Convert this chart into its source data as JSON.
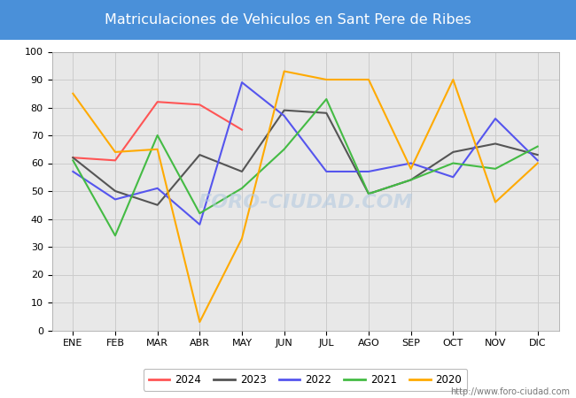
{
  "title": "Matriculaciones de Vehiculos en Sant Pere de Ribes",
  "title_bg_color": "#4a90d9",
  "title_text_color": "#ffffff",
  "months": [
    "ENE",
    "FEB",
    "MAR",
    "ABR",
    "MAY",
    "JUN",
    "JUL",
    "AGO",
    "SEP",
    "OCT",
    "NOV",
    "DIC"
  ],
  "series": {
    "2024": {
      "color": "#ff5555",
      "data": [
        62,
        61,
        82,
        81,
        72,
        null,
        null,
        null,
        null,
        null,
        null,
        null
      ]
    },
    "2023": {
      "color": "#555555",
      "data": [
        62,
        50,
        45,
        63,
        57,
        79,
        78,
        49,
        54,
        64,
        67,
        63
      ]
    },
    "2022": {
      "color": "#5555ee",
      "data": [
        57,
        47,
        51,
        38,
        89,
        77,
        57,
        57,
        60,
        55,
        76,
        61
      ]
    },
    "2021": {
      "color": "#44bb44",
      "data": [
        61,
        34,
        70,
        42,
        51,
        65,
        83,
        49,
        54,
        60,
        58,
        66
      ]
    },
    "2020": {
      "color": "#ffaa00",
      "data": [
        85,
        64,
        65,
        3,
        33,
        93,
        90,
        90,
        58,
        90,
        46,
        60
      ]
    }
  },
  "ylim": [
    0,
    100
  ],
  "yticks": [
    0,
    10,
    20,
    30,
    40,
    50,
    60,
    70,
    80,
    90,
    100
  ],
  "grid_color": "#cccccc",
  "plot_bg_color": "#e8e8e8",
  "fig_bg_color": "#ffffff",
  "watermark_text": "FORO-CIUDAD.COM",
  "watermark_url": "http://www.foro-ciudad.com",
  "legend_order": [
    "2024",
    "2023",
    "2022",
    "2021",
    "2020"
  ]
}
